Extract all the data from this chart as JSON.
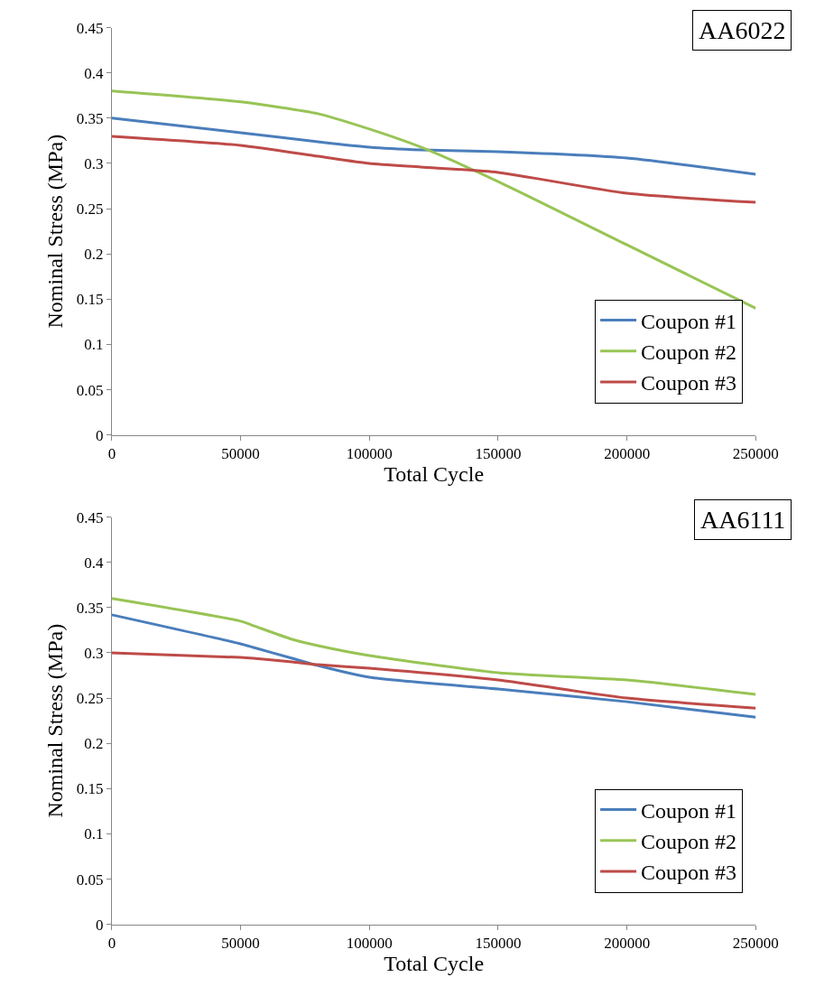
{
  "chart_data": [
    {
      "type": "line",
      "xlabel": "Total Cycle",
      "ylabel": "Nominal Stress (MPa)",
      "annotations": [
        "AA6022"
      ],
      "xlim": [
        0,
        250000
      ],
      "xticks": [
        0,
        50000,
        100000,
        150000,
        200000,
        250000
      ],
      "ylim": [
        0,
        0.45
      ],
      "yticks": [
        0,
        0.05,
        0.1,
        0.15,
        0.2,
        0.25,
        0.3,
        0.35,
        0.4,
        0.45
      ],
      "legend": "bottom right",
      "marker": "none",
      "line_style": "solid",
      "x": [
        0,
        50000,
        80000,
        100000,
        120000,
        150000,
        200000,
        250000
      ],
      "series": [
        {
          "name": "Coupon #1",
          "color": "#4a7ebb",
          "values": [
            0.35,
            0.334,
            0.324,
            0.318,
            0.315,
            0.313,
            0.306,
            0.288
          ]
        },
        {
          "name": "Coupon #2",
          "color": "#98c455",
          "values": [
            0.38,
            0.368,
            0.355,
            0.338,
            0.318,
            0.28,
            0.21,
            0.14
          ]
        },
        {
          "name": "Coupon #3",
          "color": "#be4b48",
          "values": [
            0.33,
            0.32,
            0.308,
            0.3,
            0.296,
            0.29,
            0.267,
            0.257
          ]
        }
      ]
    },
    {
      "type": "line",
      "xlabel": "Total Cycle",
      "ylabel": "Nominal Stress (MPa)",
      "annotations": [
        "AA6111"
      ],
      "xlim": [
        0,
        250000
      ],
      "xticks": [
        0,
        50000,
        100000,
        150000,
        200000,
        250000
      ],
      "ylim": [
        0,
        0.45
      ],
      "yticks": [
        0,
        0.05,
        0.1,
        0.15,
        0.2,
        0.25,
        0.3,
        0.35,
        0.4,
        0.45
      ],
      "legend": "bottom right",
      "marker": "none",
      "line_style": "solid",
      "x": [
        0,
        50000,
        55000,
        70000,
        80000,
        100000,
        150000,
        200000,
        250000
      ],
      "series": [
        {
          "name": "Coupon #1",
          "color": "#4a7ebb",
          "values": [
            0.342,
            0.31,
            0.306,
            0.294,
            0.286,
            0.273,
            0.26,
            0.246,
            0.229
          ]
        },
        {
          "name": "Coupon #2",
          "color": "#98c455",
          "values": [
            0.36,
            0.335,
            0.33,
            0.315,
            0.308,
            0.297,
            0.278,
            0.27,
            0.254
          ]
        },
        {
          "name": "Coupon #3",
          "color": "#be4b48",
          "values": [
            0.3,
            0.295,
            0.294,
            0.29,
            0.287,
            0.283,
            0.27,
            0.25,
            0.239
          ]
        }
      ]
    }
  ]
}
